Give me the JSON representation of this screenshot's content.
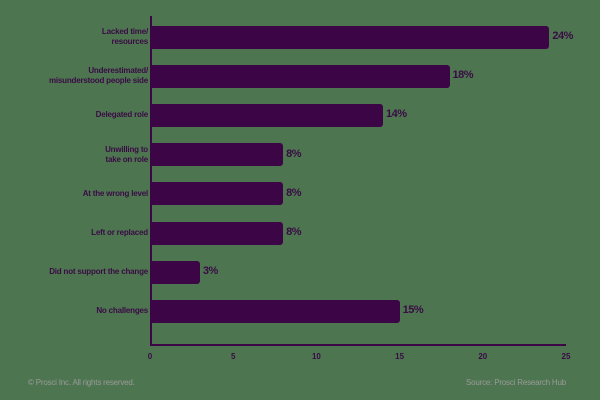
{
  "chart_data": {
    "type": "bar",
    "orientation": "horizontal",
    "title": "",
    "xlabel": "",
    "ylabel": "",
    "xlim": [
      0,
      25
    ],
    "xticks": [
      0,
      5,
      10,
      15,
      20,
      25
    ],
    "categories": [
      [
        "Lacked time/",
        "resources"
      ],
      [
        "Underestimated/",
        "misunderstood people side"
      ],
      [
        "Delegated role"
      ],
      [
        "Unwilling to",
        "take on role"
      ],
      [
        "At the wrong level"
      ],
      [
        "Left or replaced"
      ],
      [
        "Did not support the change"
      ],
      [
        "No challenges"
      ]
    ],
    "values": [
      24,
      18,
      14,
      8,
      8,
      8,
      3,
      15
    ],
    "value_labels": [
      "24%",
      "18%",
      "14%",
      "8%",
      "8%",
      "8%",
      "3%",
      "15%"
    ],
    "unit": "%",
    "bar_color": "#3c0646",
    "grid": false,
    "legend": null
  },
  "footer": {
    "copyright": "© Prosci Inc. All rights reserved.",
    "source": "Source: Prosci Research Hub"
  }
}
